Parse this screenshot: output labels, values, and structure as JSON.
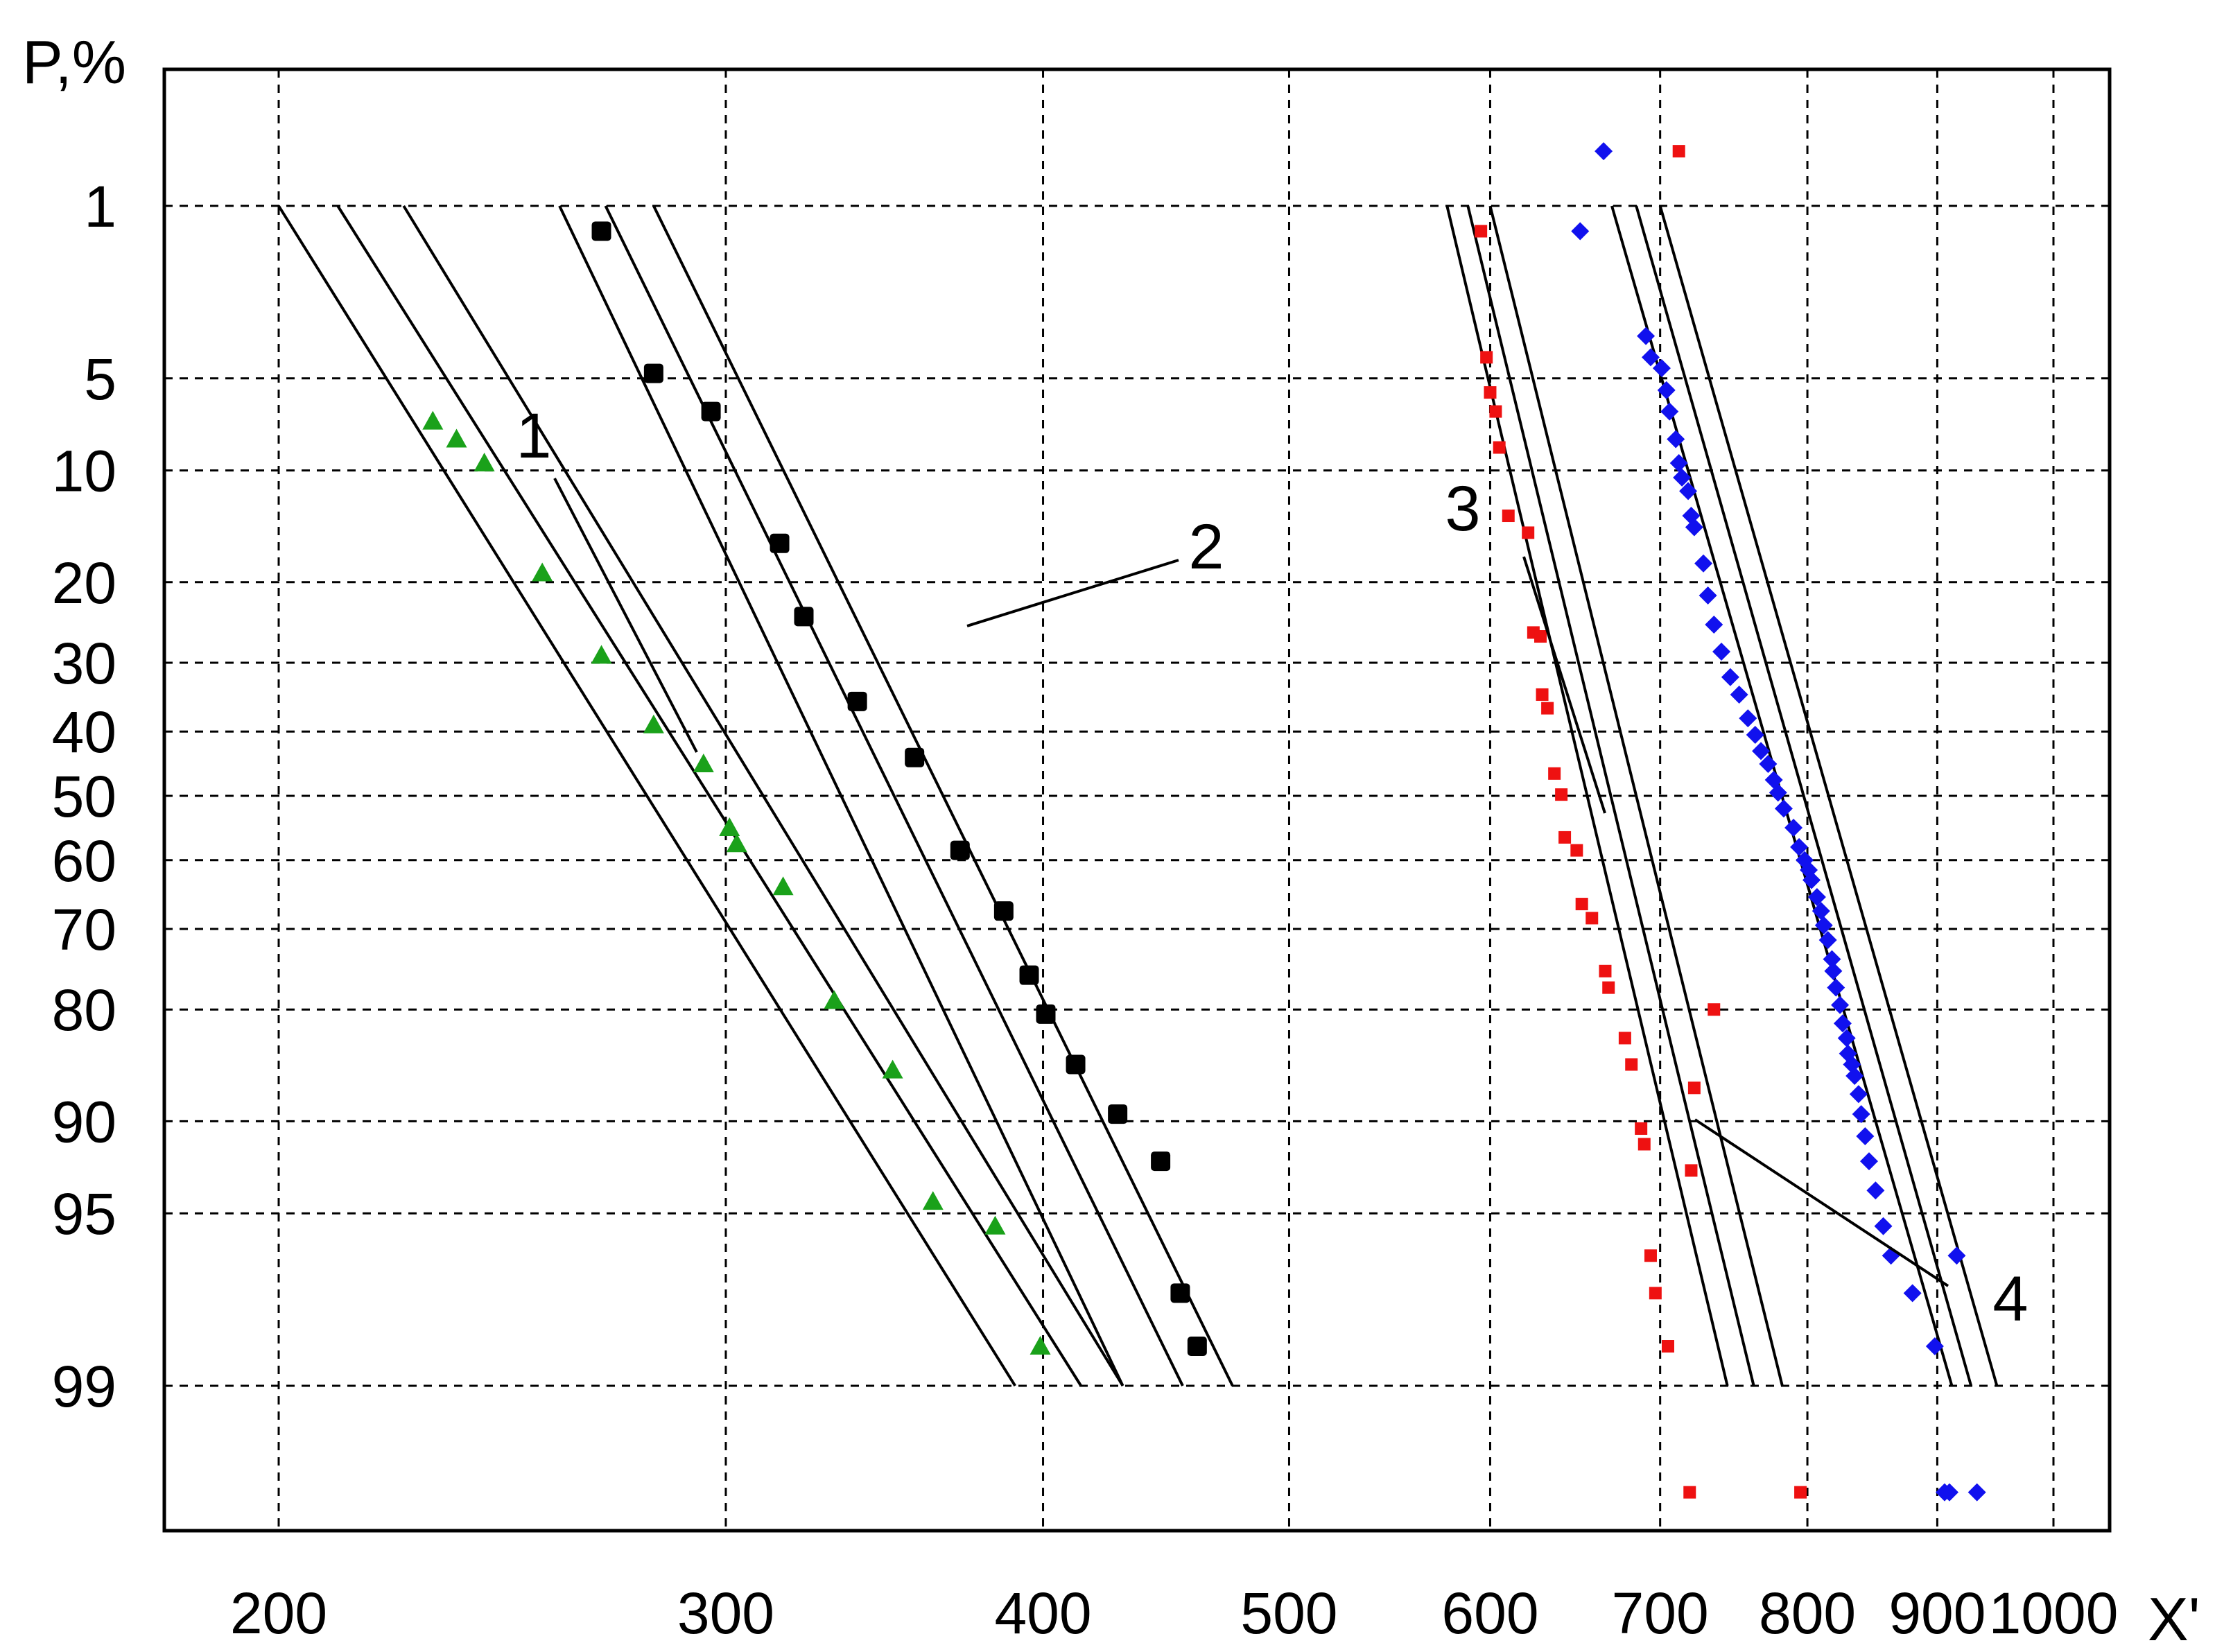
{
  "chart_data": {
    "type": "scatter",
    "title": "",
    "xlabel": "X'",
    "ylabel": "P,%",
    "x_scale": "log",
    "y_scale": "probability",
    "x_ticks": [
      200,
      300,
      400,
      500,
      600,
      700,
      800,
      900,
      1000
    ],
    "x_tick_labels": [
      "200",
      "300",
      "400",
      "500",
      "600",
      "700",
      "800",
      "900",
      "1000"
    ],
    "y_ticks": [
      1,
      5,
      10,
      20,
      30,
      40,
      50,
      60,
      70,
      80,
      90,
      95,
      99
    ],
    "y_tick_labels": [
      "1",
      "5",
      "10",
      "20",
      "30",
      "40",
      "50",
      "60",
      "70",
      "80",
      "90",
      "95",
      "99"
    ],
    "grid": true,
    "annotations": [
      "1",
      "2",
      "3",
      "4"
    ],
    "colors": {
      "series1": "#1aa11a",
      "series2": "#000000",
      "series3": "#ee1111",
      "series4": "#1111ee"
    },
    "series": [
      {
        "id": "1",
        "marker": "triangle",
        "x": [
          230,
          235,
          241,
          254,
          268,
          281,
          294,
          301,
          303,
          316,
          331,
          349,
          362,
          383,
          399
        ],
        "y": [
          7,
          8,
          9.5,
          19,
          29,
          39,
          45,
          55,
          57.5,
          64,
          79,
          86,
          94.5,
          95.5,
          98.5
        ]
      },
      {
        "id": "2",
        "marker": "square",
        "x": [
          268,
          281,
          296,
          315,
          322,
          338,
          356,
          371,
          386,
          395,
          401,
          412,
          428,
          445,
          453,
          460
        ],
        "y": [
          1.3,
          4.8,
          6.5,
          16,
          24,
          35.5,
          44,
          58.5,
          67.5,
          76,
          80.5,
          85.5,
          89.5,
          92.5,
          97.5,
          98.5
        ]
      },
      {
        "id": "3",
        "marker": "square",
        "x": [
          595,
          598,
          600,
          603,
          605,
          610,
          621,
          624,
          628,
          629,
          632,
          636,
          640,
          642,
          649,
          652,
          658,
          666,
          668,
          678,
          682,
          688,
          690,
          694,
          697,
          705,
          712,
          719,
          720,
          722,
          735,
          795
        ],
        "y": [
          1.3,
          4.2,
          5.6,
          6.5,
          8.5,
          13.5,
          15,
          26,
          26.5,
          34.5,
          36.5,
          46.5,
          49.8,
          56.5,
          58.5,
          66.5,
          68.5,
          75.5,
          77.5,
          83,
          85.5,
          90.5,
          91.5,
          96.5,
          97.5,
          98.5,
          0.55,
          99.7,
          93,
          87.5,
          80,
          99.7
        ]
      },
      {
        "id": "4",
        "marker": "diamond",
        "x": [
          651,
          665,
          691,
          694,
          701,
          704,
          706,
          710,
          712,
          714,
          718,
          720,
          722,
          728,
          731,
          735,
          740,
          746,
          752,
          758,
          763,
          767,
          772,
          776,
          779,
          783,
          790,
          794,
          798,
          801,
          803,
          807,
          810,
          812,
          815,
          818,
          819,
          821,
          824,
          826,
          829,
          830,
          833,
          835,
          838,
          840,
          843,
          846,
          851,
          857,
          863,
          880,
          898,
          906,
          910,
          916,
          933
        ],
        "y": [
          1.3,
          0.55,
          3.5,
          4.2,
          4.6,
          5.5,
          6.5,
          8,
          9.5,
          10.5,
          11.5,
          13.5,
          14.5,
          18,
          21.5,
          25,
          28.5,
          32,
          34.5,
          38,
          40.5,
          43,
          45,
          47.5,
          49.5,
          52,
          55,
          58,
          60,
          61.5,
          63,
          65.5,
          67.5,
          69.5,
          71.5,
          74,
          75.5,
          77.5,
          79.5,
          81.5,
          83,
          84.5,
          85.5,
          86.5,
          88,
          89.5,
          91,
          92.5,
          94,
          95.5,
          96.5,
          97.5,
          98.5,
          99.7,
          99.7,
          96.5,
          99.7
        ]
      }
    ],
    "confidence_lines": [
      {
        "group": "1",
        "x_at_p1": [
          200,
          211,
          224
        ],
        "x_at_p99": [
          390,
          414,
          430
        ]
      },
      {
        "group": "2",
        "x_at_p1": [
          258,
          269,
          281
        ],
        "x_at_p99": [
          430,
          454,
          475
        ]
      },
      {
        "group": "3",
        "x_at_p1": [
          577,
          588,
          600
        ],
        "x_at_p99": [
          744,
          762,
          782
        ]
      },
      {
        "group": "4",
        "x_at_p1": [
          670,
          685,
          700
        ],
        "x_at_p99": [
          912,
          928,
          950
        ]
      }
    ]
  }
}
